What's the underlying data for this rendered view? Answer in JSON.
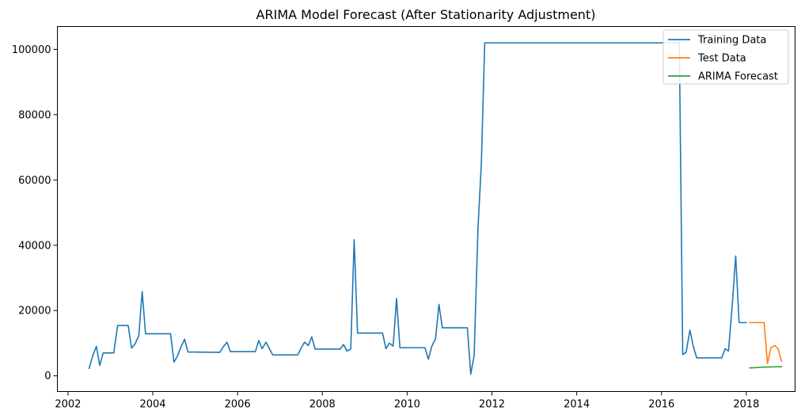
{
  "chart_data": {
    "type": "line",
    "title": "ARIMA Model Forecast (After Stationarity Adjustment)",
    "xlabel": "",
    "ylabel": "",
    "xlim": [
      2001.75,
      2019.15
    ],
    "ylim": [
      -4800,
      107000
    ],
    "x_ticks": [
      2002,
      2004,
      2006,
      2008,
      2010,
      2012,
      2014,
      2016,
      2018
    ],
    "x_tick_labels": [
      "2002",
      "2004",
      "2006",
      "2008",
      "2010",
      "2012",
      "2014",
      "2016",
      "2018"
    ],
    "y_ticks": [
      0,
      20000,
      40000,
      60000,
      80000,
      100000
    ],
    "y_tick_labels": [
      "0",
      "20000",
      "40000",
      "60000",
      "80000",
      "100000"
    ],
    "grid": false,
    "legend_position": "top-right",
    "series": [
      {
        "name": "Training Data",
        "color": "#1f77b4",
        "points": [
          [
            2002.5,
            2300
          ],
          [
            2002.58,
            6000
          ],
          [
            2002.67,
            9000
          ],
          [
            2002.75,
            3200
          ],
          [
            2002.83,
            7000
          ],
          [
            2003.0,
            7000
          ],
          [
            2003.08,
            7000
          ],
          [
            2003.17,
            15400
          ],
          [
            2003.42,
            15400
          ],
          [
            2003.5,
            8500
          ],
          [
            2003.58,
            9700
          ],
          [
            2003.67,
            12300
          ],
          [
            2003.75,
            25800
          ],
          [
            2003.83,
            12900
          ],
          [
            2004.42,
            12900
          ],
          [
            2004.5,
            4200
          ],
          [
            2004.58,
            6000
          ],
          [
            2004.67,
            9000
          ],
          [
            2004.75,
            11200
          ],
          [
            2004.83,
            7300
          ],
          [
            2005.58,
            7200
          ],
          [
            2005.67,
            9000
          ],
          [
            2005.75,
            10300
          ],
          [
            2005.83,
            7400
          ],
          [
            2006.42,
            7400
          ],
          [
            2006.5,
            10800
          ],
          [
            2006.58,
            8300
          ],
          [
            2006.67,
            10300
          ],
          [
            2006.83,
            6400
          ],
          [
            2007.42,
            6400
          ],
          [
            2007.5,
            8500
          ],
          [
            2007.58,
            10300
          ],
          [
            2007.67,
            9300
          ],
          [
            2007.75,
            11900
          ],
          [
            2007.83,
            8200
          ],
          [
            2008.42,
            8200
          ],
          [
            2008.5,
            9600
          ],
          [
            2008.58,
            7600
          ],
          [
            2008.67,
            8200
          ],
          [
            2008.75,
            41700
          ],
          [
            2008.83,
            13100
          ],
          [
            2009.42,
            13100
          ],
          [
            2009.5,
            8300
          ],
          [
            2009.58,
            10000
          ],
          [
            2009.67,
            9100
          ],
          [
            2009.75,
            23700
          ],
          [
            2009.83,
            8600
          ],
          [
            2010.42,
            8600
          ],
          [
            2010.5,
            5100
          ],
          [
            2010.58,
            9000
          ],
          [
            2010.67,
            11400
          ],
          [
            2010.75,
            21900
          ],
          [
            2010.83,
            14700
          ],
          [
            2011.42,
            14700
          ],
          [
            2011.5,
            500
          ],
          [
            2011.58,
            6200
          ],
          [
            2011.67,
            45000
          ],
          [
            2011.75,
            65000
          ],
          [
            2011.83,
            102000
          ],
          [
            2016.42,
            102000
          ],
          [
            2016.5,
            6500
          ],
          [
            2016.58,
            7200
          ],
          [
            2016.67,
            14000
          ],
          [
            2016.75,
            9000
          ],
          [
            2016.83,
            5500
          ],
          [
            2017.42,
            5500
          ],
          [
            2017.5,
            8300
          ],
          [
            2017.58,
            7600
          ],
          [
            2017.67,
            22000
          ],
          [
            2017.75,
            36700
          ],
          [
            2017.83,
            16300
          ],
          [
            2018.0,
            16300
          ]
        ]
      },
      {
        "name": "Test Data",
        "color": "#ff7f0e",
        "points": [
          [
            2018.08,
            16300
          ],
          [
            2018.42,
            16300
          ],
          [
            2018.5,
            3700
          ],
          [
            2018.58,
            8600
          ],
          [
            2018.67,
            9300
          ],
          [
            2018.75,
            8300
          ],
          [
            2018.83,
            4500
          ]
        ]
      },
      {
        "name": "ARIMA Forecast",
        "color": "#2ca02c",
        "points": [
          [
            2018.08,
            2400
          ],
          [
            2018.33,
            2600
          ],
          [
            2018.5,
            2700
          ],
          [
            2018.67,
            2750
          ],
          [
            2018.83,
            2800
          ]
        ]
      }
    ]
  }
}
